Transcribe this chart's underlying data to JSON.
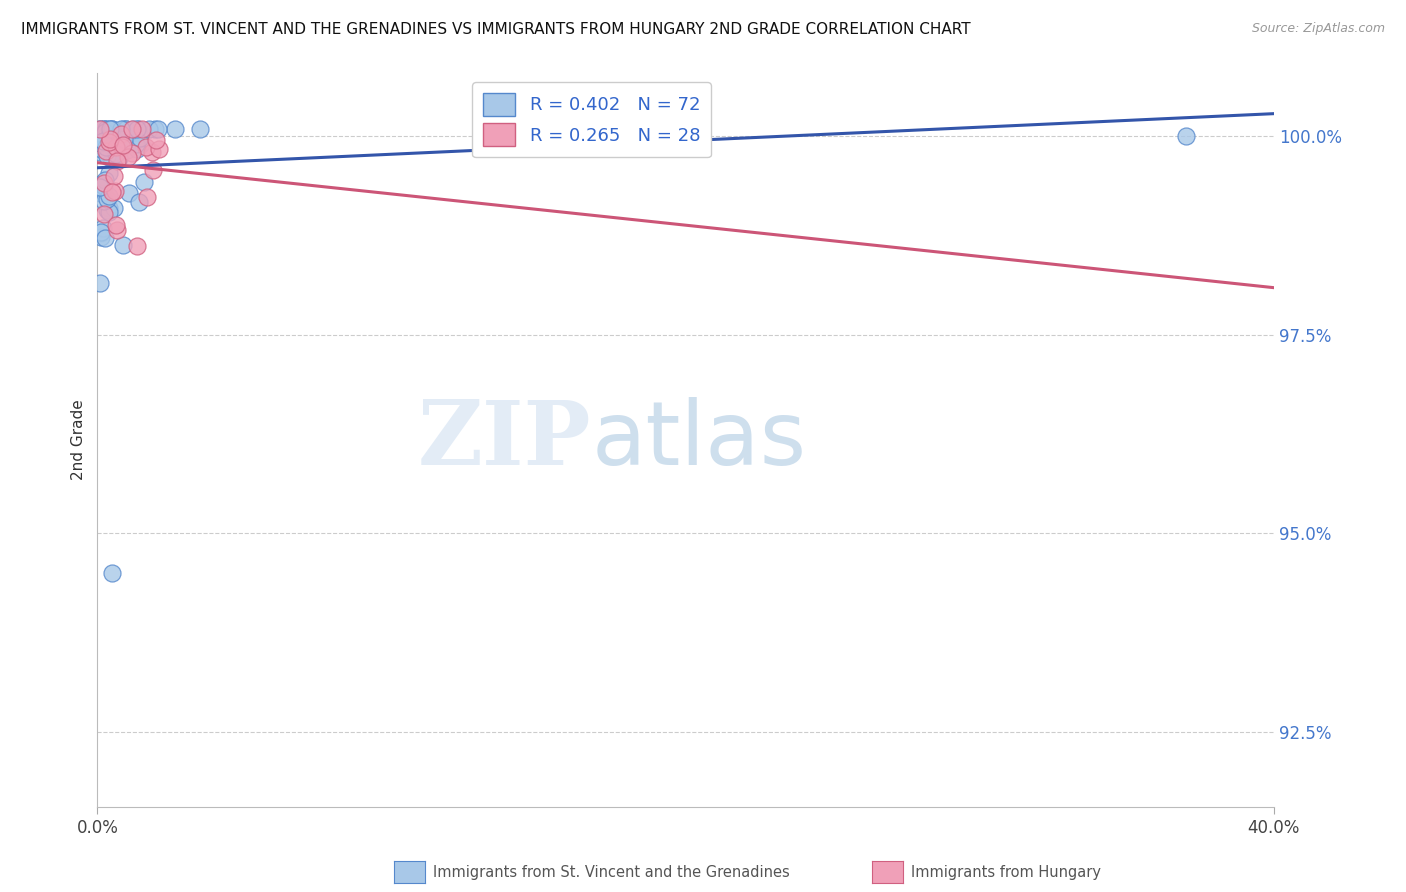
{
  "title": "IMMIGRANTS FROM ST. VINCENT AND THE GRENADINES VS IMMIGRANTS FROM HUNGARY 2ND GRADE CORRELATION CHART",
  "source": "Source: ZipAtlas.com",
  "ylabel": "2nd Grade",
  "x_min": 0.0,
  "x_max": 0.4,
  "y_min": 0.9155,
  "y_max": 1.008,
  "y_ticks": [
    0.925,
    0.95,
    0.975,
    1.0
  ],
  "y_tick_labels": [
    "92.5%",
    "95.0%",
    "97.5%",
    "100.0%"
  ],
  "blue_R": 0.402,
  "blue_N": 72,
  "pink_R": 0.265,
  "pink_N": 28,
  "blue_fill": "#a8c8e8",
  "blue_edge": "#5588cc",
  "pink_fill": "#f0a0b8",
  "pink_edge": "#d06080",
  "blue_line_color": "#3355aa",
  "pink_line_color": "#cc5577",
  "legend_label_blue": "Immigrants from St. Vincent and the Grenadines",
  "legend_label_pink": "Immigrants from Hungary",
  "watermark_zip": "ZIP",
  "watermark_atlas": "atlas"
}
